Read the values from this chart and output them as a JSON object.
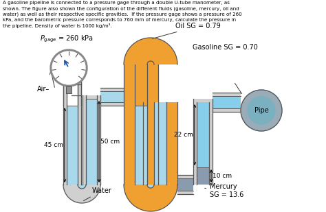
{
  "title_text": "A gasoline pipeline is connected to a pressure gage through a double U-tube manometer, as\nshown. The figure also shown the configuration of the different fluids (gasoline, mercury, oil and\nwater) as well as their respective specific gravities.  If the pressure gage shows a pressure of 260\nkPa, and the barometric pressure corresponds to 760 mm of mercury, calculate the pressure in\nthe pipeline. Density of water is 1000 kg/m³.",
  "color_water": "#a8d8ea",
  "color_oil": "#f0a030",
  "color_mercury": "#8a9bb0",
  "color_gasoline": "#87ceeb",
  "color_pipe_outer": "#9aacb8",
  "color_pipe_inner": "#7ab0c0",
  "color_tube_wall": "#d8d8d8",
  "color_gauge_body": "#b0b0b0",
  "color_gauge_rim": "#909090",
  "label_oil": "Oil SG = 0.79",
  "label_gasoline": "Gasoline SG = 0.70",
  "label_water": "Water",
  "label_mercury": "Mercury\nSG = 13.6",
  "label_air": "Air",
  "label_pipe": "Pipe",
  "dim_45cm": "45 cm",
  "dim_50cm": "50 cm",
  "dim_22cm": "22 cm",
  "dim_10cm": "10 cm"
}
